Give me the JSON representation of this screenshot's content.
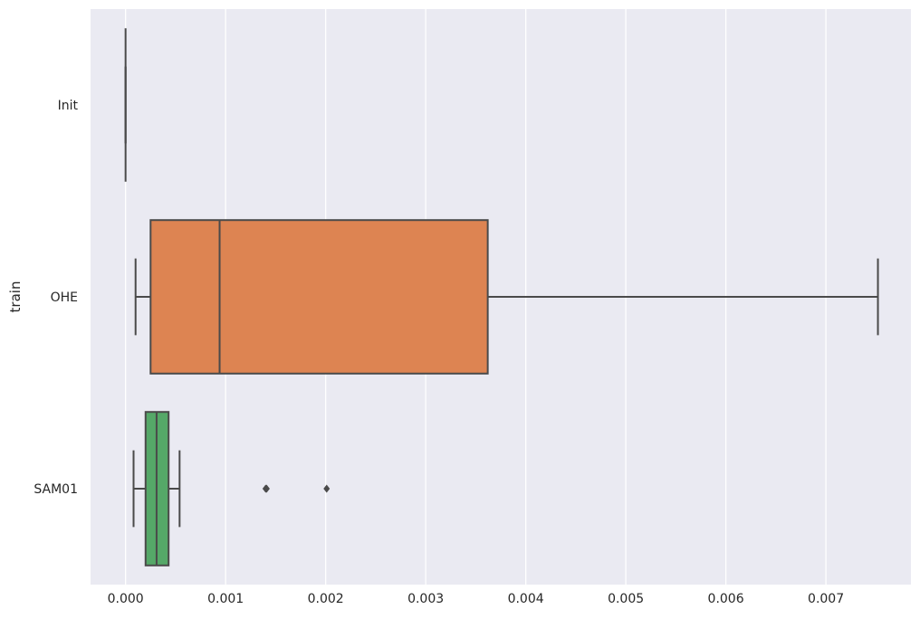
{
  "chart_data": {
    "type": "boxplot",
    "orientation": "horizontal",
    "title": "",
    "xlabel": "",
    "ylabel": "train",
    "xlim": [
      -0.00035,
      0.00785
    ],
    "xticks": [
      0.0,
      0.001,
      0.002,
      0.003,
      0.004,
      0.005,
      0.006,
      0.007
    ],
    "xtick_labels": [
      "0.000",
      "0.001",
      "0.002",
      "0.003",
      "0.004",
      "0.005",
      "0.006",
      "0.007"
    ],
    "grid": true,
    "background_color": "#EAEAF2",
    "categories": [
      "Init",
      "OHE",
      "SAM01"
    ],
    "boxes": [
      {
        "name": "Init",
        "color": "#4C72B0",
        "whisker_low": 0.0,
        "q1": 0.0,
        "median": 0.0,
        "q3": 0.0,
        "whisker_high": 0.0,
        "outliers": []
      },
      {
        "name": "OHE",
        "color": "#DD8452",
        "whisker_low": 0.0001,
        "q1": 0.00025,
        "median": 0.00094,
        "q3": 0.00362,
        "whisker_high": 0.00752,
        "outliers": []
      },
      {
        "name": "SAM01",
        "color": "#55A868",
        "whisker_low": 8e-05,
        "q1": 0.0002,
        "median": 0.00031,
        "q3": 0.00043,
        "whisker_high": 0.00054,
        "outliers": [
          0.0014,
          0.00141,
          0.00201
        ]
      }
    ]
  }
}
